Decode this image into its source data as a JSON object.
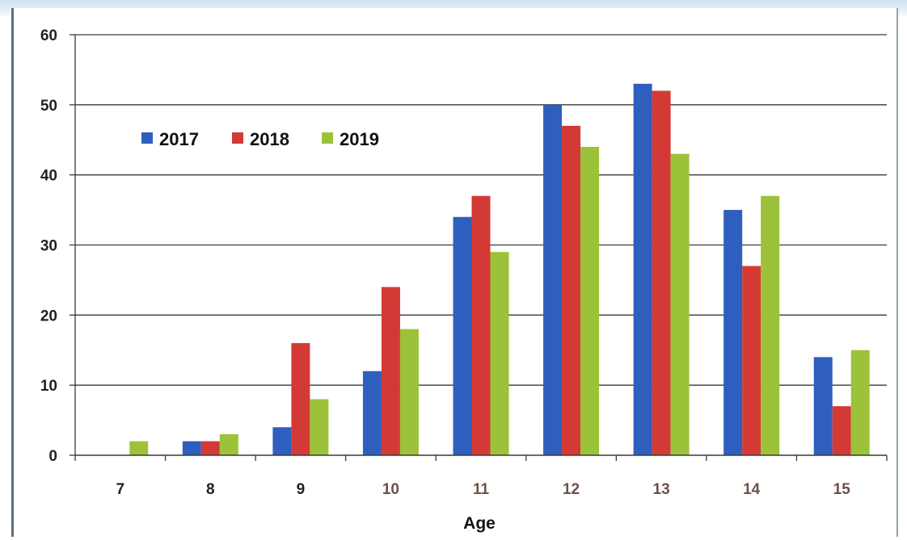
{
  "chart_data": {
    "type": "bar",
    "title": "",
    "xlabel": "Age",
    "ylabel": "",
    "categories": [
      "7",
      "8",
      "9",
      "10",
      "11",
      "12",
      "13",
      "14",
      "15"
    ],
    "ylim": [
      0,
      60
    ],
    "yticks": [
      "0",
      "10",
      "20",
      "30",
      "40",
      "50",
      "60"
    ],
    "grid": true,
    "legend_position": "top-left",
    "series": [
      {
        "name": "2017",
        "color": "#2e5fbf",
        "values": [
          0,
          2,
          4,
          12,
          34,
          50,
          53,
          35,
          14
        ]
      },
      {
        "name": "2018",
        "color": "#d33a35",
        "values": [
          0,
          2,
          16,
          24,
          37,
          47,
          52,
          27,
          7
        ]
      },
      {
        "name": "2019",
        "color": "#9cc23a",
        "values": [
          2,
          3,
          8,
          18,
          29,
          44,
          43,
          37,
          15
        ]
      }
    ],
    "tick_colors": {
      "dark": "#222222",
      "brown": "#6d5048"
    }
  }
}
